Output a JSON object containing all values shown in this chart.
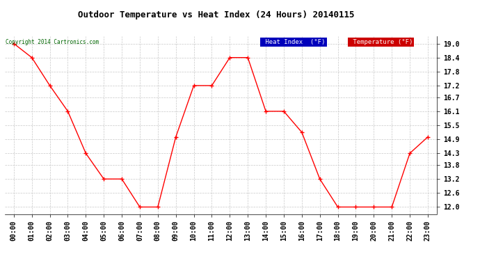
{
  "title": "Outdoor Temperature vs Heat Index (24 Hours) 20140115",
  "copyright": "Copyright 2014 Cartronics.com",
  "hours": [
    "00:00",
    "01:00",
    "02:00",
    "03:00",
    "04:00",
    "05:00",
    "06:00",
    "07:00",
    "08:00",
    "09:00",
    "10:00",
    "11:00",
    "12:00",
    "13:00",
    "14:00",
    "15:00",
    "16:00",
    "17:00",
    "18:00",
    "19:00",
    "20:00",
    "21:00",
    "22:00",
    "23:00"
  ],
  "temperature": [
    19.0,
    18.4,
    17.2,
    16.1,
    14.3,
    13.2,
    13.2,
    12.0,
    12.0,
    15.0,
    17.2,
    17.2,
    18.4,
    18.4,
    16.1,
    16.1,
    15.2,
    13.2,
    12.0,
    12.0,
    12.0,
    12.0,
    14.3,
    15.0
  ],
  "heat_index": [
    19.0,
    18.4,
    17.2,
    16.1,
    14.3,
    13.2,
    13.2,
    12.0,
    12.0,
    15.0,
    17.2,
    17.2,
    18.4,
    18.4,
    16.1,
    16.1,
    15.2,
    13.2,
    12.0,
    12.0,
    12.0,
    12.0,
    14.3,
    15.0
  ],
  "temp_color": "#ff0000",
  "heat_index_color": "#000000",
  "ylim_min": 11.7,
  "ylim_max": 19.3,
  "yticks": [
    12.0,
    12.6,
    13.2,
    13.8,
    14.3,
    14.9,
    15.5,
    16.1,
    16.7,
    17.2,
    17.8,
    18.4,
    19.0
  ],
  "bg_color": "#ffffff",
  "grid_color": "#c8c8c8",
  "legend_heat_index_bg": "#0000bb",
  "legend_temp_bg": "#cc0000",
  "legend_text_color": "#ffffff",
  "copyright_color": "#006600",
  "title_fontsize": 9,
  "tick_fontsize": 7
}
